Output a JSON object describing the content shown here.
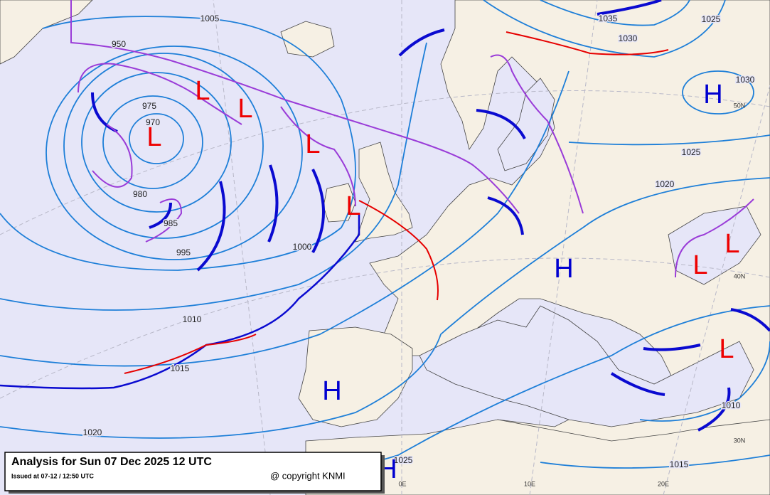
{
  "title": "Analysis for Sun 07 Dec 2025 12 UTC",
  "issued": "Issued at 07-12 / 12:50 UTC",
  "copyright": "@ copyright KNMI",
  "isobar_labels": [
    "1005",
    "950",
    "975",
    "970",
    "980",
    "985",
    "995",
    "1000",
    "1010",
    "1015",
    "1020",
    "1035",
    "1030",
    "1025",
    "1030",
    "1025",
    "1020",
    "1010",
    "1015",
    "1025"
  ],
  "pressure_centers": [
    "L",
    "L",
    "L",
    "L",
    "L",
    "H",
    "H",
    "H",
    "L",
    "L",
    "L",
    "H"
  ],
  "grid_labels": [
    "50N",
    "40N",
    "30N",
    "0E",
    "10E",
    "20E"
  ]
}
